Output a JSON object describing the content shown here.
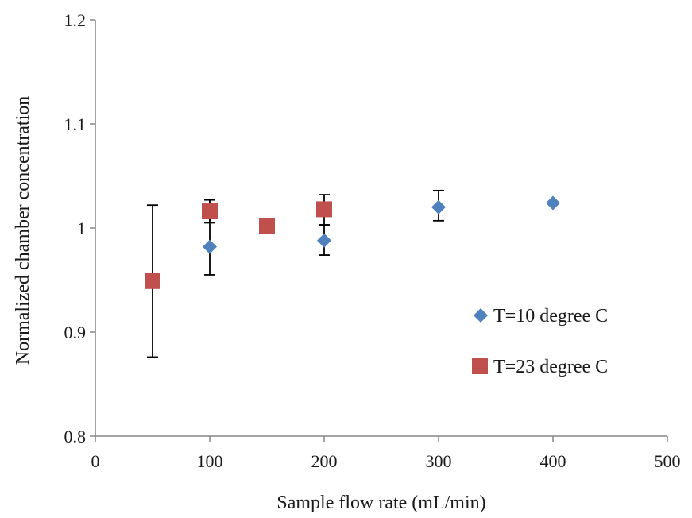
{
  "chart_data": {
    "type": "scatter",
    "title": "",
    "xlabel": "Sample flow rate (mL/min)",
    "ylabel": "Normalized chamber concentration",
    "xlim": [
      0,
      500
    ],
    "ylim": [
      0.8,
      1.2
    ],
    "x_ticks": [
      "0",
      "100",
      "200",
      "300",
      "400",
      "500"
    ],
    "y_ticks": [
      "0.8",
      "0.9",
      "1",
      "1.1",
      "1.2"
    ],
    "x_tick_values": [
      0,
      100,
      200,
      300,
      400,
      500
    ],
    "y_tick_values": [
      0.8,
      0.9,
      1.0,
      1.1,
      1.2
    ],
    "grid": false,
    "legend_position": "right",
    "series": [
      {
        "name": "T=10 degree C",
        "marker": "diamond",
        "color": "#4f81bd",
        "points": [
          {
            "x": 100,
            "y": 0.982,
            "err_low": 0.955,
            "err_high": 1.027
          },
          {
            "x": 150,
            "y": 1.001,
            "err_low": 0.995,
            "err_high": 1.002
          },
          {
            "x": 200,
            "y": 0.988,
            "err_low": 0.974,
            "err_high": 1.003
          },
          {
            "x": 300,
            "y": 1.02,
            "err_low": 1.007,
            "err_high": 1.036
          },
          {
            "x": 400,
            "y": 1.024,
            "err_low": null,
            "err_high": null
          }
        ]
      },
      {
        "name": "T=23 degree C",
        "marker": "square",
        "color": "#c0504d",
        "points": [
          {
            "x": 50,
            "y": 0.949,
            "err_low": 0.876,
            "err_high": 1.022
          },
          {
            "x": 100,
            "y": 1.016,
            "err_low": 1.005,
            "err_high": 1.027
          },
          {
            "x": 150,
            "y": 1.002,
            "err_low": 0.995,
            "err_high": 1.003
          },
          {
            "x": 200,
            "y": 1.018,
            "err_low": 1.003,
            "err_high": 1.032
          }
        ]
      }
    ]
  }
}
